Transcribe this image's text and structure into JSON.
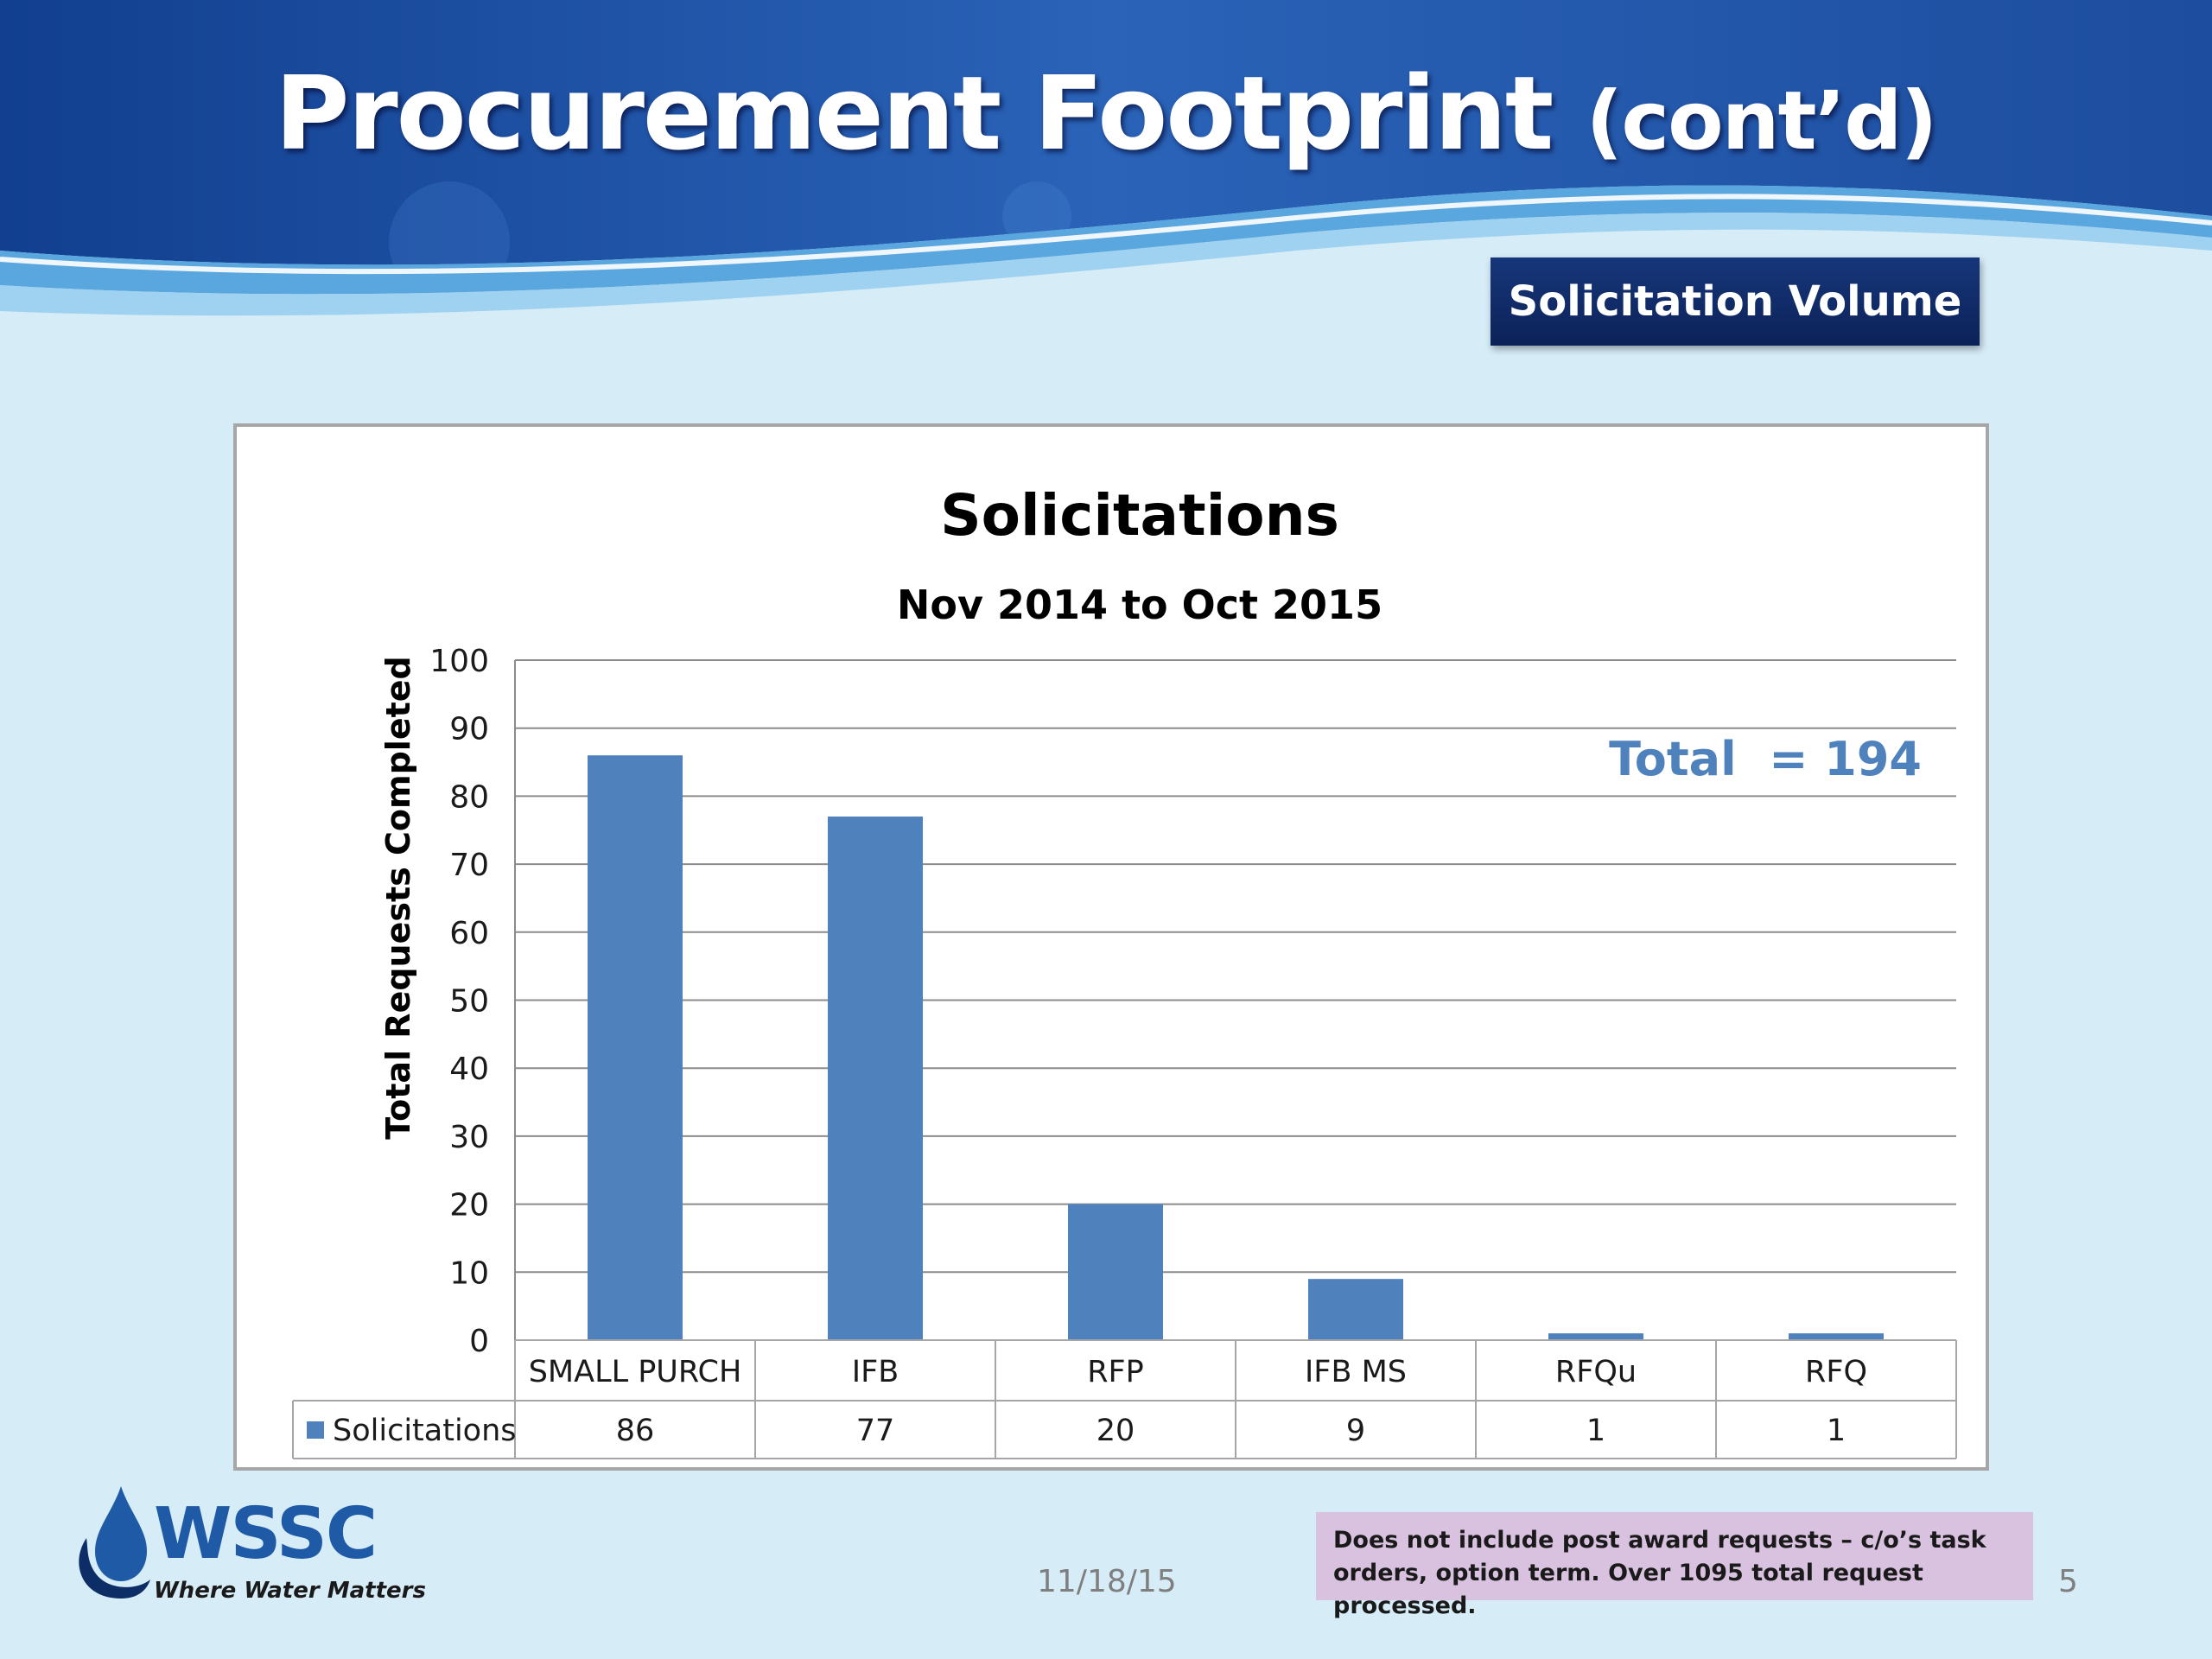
{
  "slide": {
    "title_main": "Procurement Footprint",
    "title_sub": "(cont’d)",
    "section_badge": "Solicitation Volume",
    "note": "Does not include post award requests – c/o’s task orders, option term. Over 1095 total request processed.",
    "date": "11/18/15",
    "page_number": "5",
    "logo": {
      "name": "WSSC",
      "tagline": "Where Water Matters",
      "icon": "water-drop-icon"
    }
  },
  "colors": {
    "bar": "#4f81bd",
    "total_text": "#4f81bd",
    "banner": "#1b4fa3",
    "badge": "#0c2258"
  },
  "chart_data": {
    "type": "bar",
    "title": "Solicitations",
    "subtitle": "Nov 2014 to Oct 2015",
    "ylabel": "Total Requests Completed",
    "xlabel": "",
    "categories": [
      "SMALL PURCH",
      "IFB",
      "RFP",
      "IFB MS",
      "RFQu",
      "RFQ"
    ],
    "series": [
      {
        "name": "Solicitations",
        "values": [
          86,
          77,
          20,
          9,
          1,
          1
        ]
      }
    ],
    "ylim": [
      0,
      100
    ],
    "yticks": [
      0,
      10,
      20,
      30,
      40,
      50,
      60,
      70,
      80,
      90,
      100
    ],
    "grid": true,
    "data_table": true,
    "annotation": "Total  = 194"
  }
}
